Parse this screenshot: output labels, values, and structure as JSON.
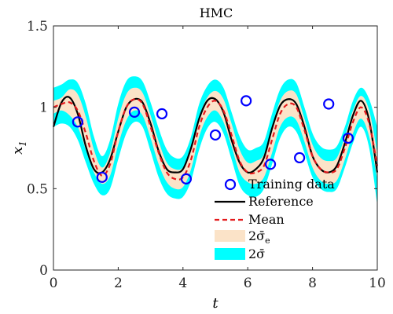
{
  "chart_data": {
    "type": "line",
    "title": "HMC",
    "xlabel": "t",
    "ylabel": "x",
    "ylabel_subscript": "1",
    "xlim": [
      0,
      10
    ],
    "ylim": [
      0,
      1.5
    ],
    "xticks": [
      "0",
      "2",
      "4",
      "6",
      "8",
      "10"
    ],
    "yticks": [
      "0",
      "0.5",
      "1",
      "1.5"
    ],
    "xtick_values": [
      0,
      2,
      4,
      6,
      8,
      10
    ],
    "ytick_values": [
      0,
      0.5,
      1,
      1.5
    ],
    "grid": false,
    "legend_position": "bottom-right",
    "colors": {
      "reference": "#000000",
      "mean": "#e41a1c",
      "band_e": "#fbe3c8",
      "band_total": "#00ffff",
      "training": "#0000ff"
    },
    "x": [
      0,
      0.25,
      0.5,
      0.75,
      1,
      1.25,
      1.5,
      1.75,
      2,
      2.25,
      2.5,
      2.75,
      3,
      3.25,
      3.5,
      3.75,
      4,
      4.25,
      4.5,
      4.75,
      5,
      5.25,
      5.5,
      5.75,
      6,
      6.25,
      6.5,
      6.75,
      7,
      7.25,
      7.5,
      7.75,
      8,
      8.25,
      8.5,
      8.75,
      9,
      9.25,
      9.5,
      9.75,
      10
    ],
    "series": [
      {
        "name": "Reference",
        "values": [
          0.88,
          1.03,
          1.06,
          0.96,
          0.76,
          0.62,
          0.6,
          0.68,
          0.85,
          1.0,
          1.05,
          1.03,
          0.9,
          0.73,
          0.62,
          0.6,
          0.62,
          0.75,
          0.93,
          1.04,
          1.05,
          0.97,
          0.8,
          0.66,
          0.6,
          0.62,
          0.69,
          0.87,
          1.01,
          1.05,
          1.02,
          0.88,
          0.7,
          0.62,
          0.6,
          0.64,
          0.78,
          0.95,
          1.04,
          0.92,
          0.6
        ]
      },
      {
        "name": "Mean",
        "values": [
          1.0,
          1.02,
          1.03,
          0.98,
          0.84,
          0.67,
          0.58,
          0.65,
          0.85,
          1.0,
          1.05,
          1.02,
          0.88,
          0.72,
          0.6,
          0.56,
          0.57,
          0.68,
          0.88,
          1.0,
          1.04,
          0.98,
          0.83,
          0.67,
          0.6,
          0.6,
          0.64,
          0.8,
          0.96,
          1.02,
          1.0,
          0.86,
          0.7,
          0.62,
          0.6,
          0.62,
          0.75,
          0.91,
          1.0,
          0.9,
          0.64
        ]
      },
      {
        "name": "2σ̄e",
        "lower": [
          0.96,
          0.98,
          0.95,
          0.88,
          0.74,
          0.6,
          0.53,
          0.58,
          0.77,
          0.92,
          0.98,
          0.95,
          0.81,
          0.65,
          0.54,
          0.5,
          0.51,
          0.62,
          0.82,
          0.94,
          0.98,
          0.91,
          0.76,
          0.6,
          0.54,
          0.53,
          0.57,
          0.72,
          0.88,
          0.94,
          0.92,
          0.79,
          0.63,
          0.55,
          0.53,
          0.55,
          0.68,
          0.84,
          0.93,
          0.82,
          0.56
        ],
        "upper": [
          1.04,
          1.06,
          1.11,
          1.08,
          0.94,
          0.74,
          0.63,
          0.72,
          0.93,
          1.08,
          1.12,
          1.09,
          0.95,
          0.79,
          0.66,
          0.62,
          0.63,
          0.74,
          0.94,
          1.06,
          1.1,
          1.05,
          0.9,
          0.74,
          0.66,
          0.67,
          0.71,
          0.88,
          1.04,
          1.1,
          1.08,
          0.93,
          0.77,
          0.69,
          0.67,
          0.69,
          0.82,
          0.98,
          1.07,
          0.98,
          0.72
        ]
      },
      {
        "name": "2σ̄",
        "lower": [
          0.88,
          0.9,
          0.88,
          0.8,
          0.66,
          0.53,
          0.46,
          0.5,
          0.68,
          0.84,
          0.91,
          0.88,
          0.73,
          0.57,
          0.47,
          0.44,
          0.45,
          0.55,
          0.74,
          0.87,
          0.91,
          0.84,
          0.68,
          0.52,
          0.46,
          0.45,
          0.5,
          0.65,
          0.81,
          0.88,
          0.85,
          0.72,
          0.57,
          0.5,
          0.48,
          0.5,
          0.63,
          0.78,
          0.88,
          0.75,
          0.4
        ],
        "upper": [
          1.12,
          1.14,
          1.17,
          1.15,
          1.02,
          0.82,
          0.7,
          0.8,
          1.02,
          1.16,
          1.19,
          1.16,
          1.03,
          0.87,
          0.74,
          0.69,
          0.7,
          0.82,
          1.02,
          1.13,
          1.17,
          1.12,
          0.97,
          0.82,
          0.74,
          0.75,
          0.79,
          0.96,
          1.11,
          1.17,
          1.15,
          1.0,
          0.84,
          0.76,
          0.74,
          0.76,
          0.88,
          1.04,
          1.12,
          1.05,
          0.88
        ]
      },
      {
        "name": "Training data",
        "points": [
          [
            0.75,
            0.91
          ],
          [
            1.5,
            0.57
          ],
          [
            2.5,
            0.97
          ],
          [
            3.35,
            0.96
          ],
          [
            4.1,
            0.56
          ],
          [
            5.0,
            0.83
          ],
          [
            5.95,
            1.04
          ],
          [
            6.7,
            0.65
          ],
          [
            7.6,
            0.69
          ],
          [
            8.5,
            1.02
          ],
          [
            9.1,
            0.81
          ]
        ]
      }
    ],
    "legend": {
      "training": "Training data",
      "reference": "Reference",
      "mean": "Mean",
      "band_e_main": "2σ̄",
      "band_e_sub": "e",
      "band_total": "2σ̄"
    }
  }
}
